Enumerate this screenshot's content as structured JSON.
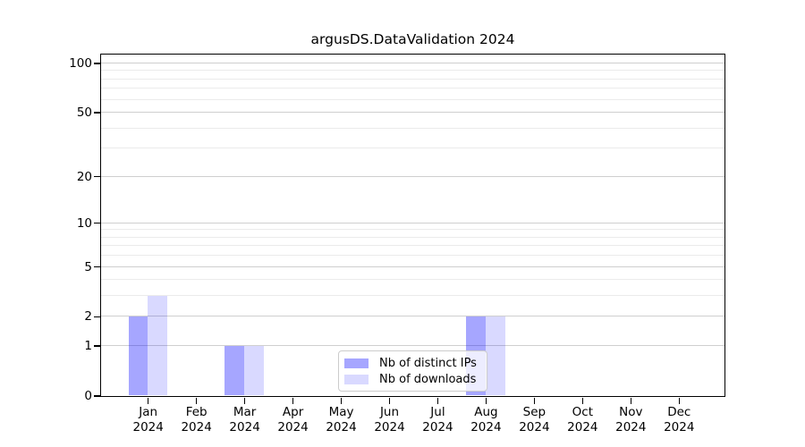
{
  "title": "argusDS.DataValidation 2024",
  "chart_data": {
    "type": "bar",
    "title": "argusDS.DataValidation 2024",
    "x_categories": [
      "Jan",
      "Feb",
      "Mar",
      "Apr",
      "May",
      "Jun",
      "Jul",
      "Aug",
      "Sep",
      "Oct",
      "Nov",
      "Dec"
    ],
    "x_year": "2024",
    "series": [
      {
        "name": "Nb of distinct IPs",
        "color": "rgba(0,0,255,0.35)",
        "values": [
          2,
          0,
          1,
          0,
          0,
          0,
          0,
          2,
          0,
          0,
          0,
          0
        ]
      },
      {
        "name": "Nb of downloads",
        "color": "rgba(0,0,255,0.15)",
        "values": [
          3,
          0,
          1,
          0,
          0,
          0,
          0,
          2,
          0,
          0,
          0,
          0
        ]
      }
    ],
    "y_scale": "log1p",
    "y_major_ticks": [
      0,
      1,
      2,
      5,
      10,
      20,
      50,
      100
    ],
    "y_minor_gridlines": [
      3,
      4,
      6,
      7,
      8,
      9,
      30,
      40,
      60,
      70,
      80,
      90
    ],
    "ylim": [
      0,
      113
    ],
    "xlabel": "",
    "ylabel": "",
    "grid": "both",
    "legend_position": "inside lower center",
    "bar_group": "paired side-by-side per month"
  }
}
